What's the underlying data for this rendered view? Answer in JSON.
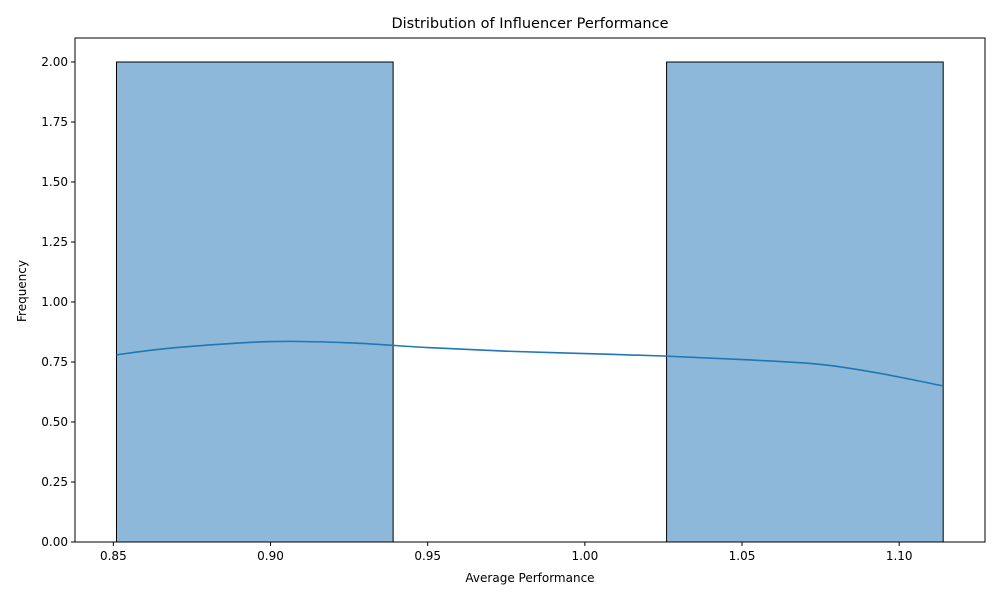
{
  "chart_data": {
    "type": "histogram",
    "title": "Distribution of Influencer Performance",
    "xlabel": "Average Performance",
    "ylabel": "Frequency",
    "xlim": [
      0.8378,
      1.1273
    ],
    "ylim": [
      0,
      2.1
    ],
    "grid": false,
    "legend": "none",
    "x_ticks": [
      {
        "value": 0.85,
        "label": "0.85"
      },
      {
        "value": 0.9,
        "label": "0.90"
      },
      {
        "value": 0.95,
        "label": "0.95"
      },
      {
        "value": 1.0,
        "label": "1.00"
      },
      {
        "value": 1.05,
        "label": "1.05"
      },
      {
        "value": 1.1,
        "label": "1.10"
      }
    ],
    "y_ticks": [
      {
        "value": 0.0,
        "label": "0.00"
      },
      {
        "value": 0.25,
        "label": "0.25"
      },
      {
        "value": 0.5,
        "label": "0.50"
      },
      {
        "value": 0.75,
        "label": "0.75"
      },
      {
        "value": 1.0,
        "label": "1.00"
      },
      {
        "value": 1.25,
        "label": "1.25"
      },
      {
        "value": 1.5,
        "label": "1.50"
      },
      {
        "value": 1.75,
        "label": "1.75"
      },
      {
        "value": 2.0,
        "label": "2.00"
      }
    ],
    "bins": [
      {
        "x0": 0.851,
        "x1": 0.939,
        "count": 2
      },
      {
        "x0": 0.939,
        "x1": 1.026,
        "count": 0
      },
      {
        "x0": 1.026,
        "x1": 1.114,
        "count": 2
      }
    ],
    "kde": [
      {
        "x": 0.851,
        "y": 0.78
      },
      {
        "x": 0.87,
        "y": 0.81
      },
      {
        "x": 0.9,
        "y": 0.835
      },
      {
        "x": 0.925,
        "y": 0.83
      },
      {
        "x": 0.95,
        "y": 0.81
      },
      {
        "x": 0.975,
        "y": 0.795
      },
      {
        "x": 1.0,
        "y": 0.785
      },
      {
        "x": 1.025,
        "y": 0.775
      },
      {
        "x": 1.05,
        "y": 0.76
      },
      {
        "x": 1.075,
        "y": 0.74
      },
      {
        "x": 1.095,
        "y": 0.7
      },
      {
        "x": 1.114,
        "y": 0.65
      }
    ],
    "colors": {
      "bar_fill": "#8db8d9",
      "bar_edge": "#000000",
      "kde_line": "#1f77b4",
      "axis": "#000000"
    }
  }
}
